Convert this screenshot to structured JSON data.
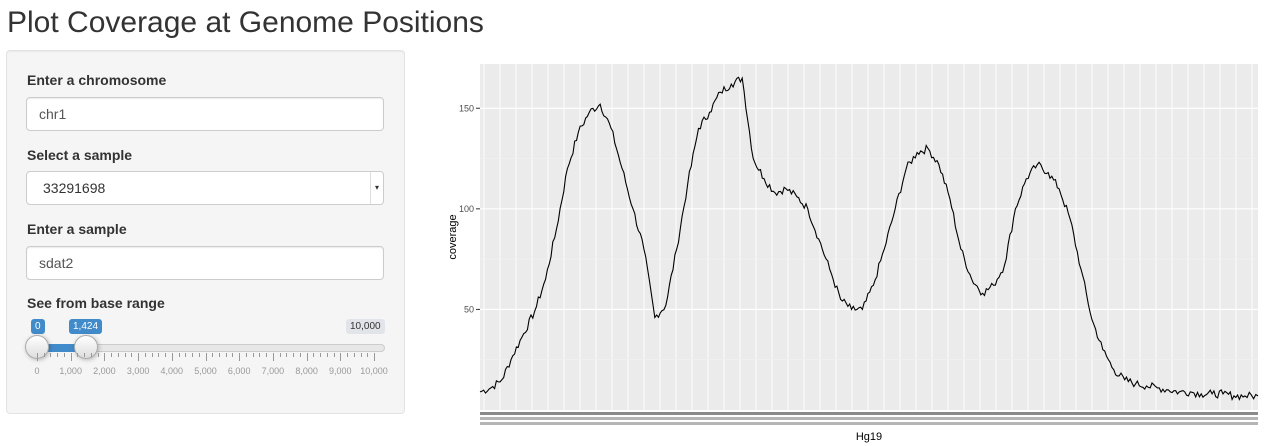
{
  "page": {
    "title": "Plot Coverage at Genome Positions"
  },
  "sidebar": {
    "chromosome": {
      "label": "Enter a chromosome",
      "value": "chr1"
    },
    "sample_select": {
      "label": "Select a sample",
      "selected": "33291698"
    },
    "sample_input": {
      "label": "Enter a sample",
      "value": "sdat2"
    },
    "range": {
      "label": "See from base range",
      "min": 0,
      "max": 10000,
      "from": 0,
      "to": 1424,
      "from_label": "0",
      "to_label": "1,424",
      "max_label": "10,000",
      "tick_labels": [
        "0",
        "1,000",
        "2,000",
        "3,000",
        "4,000",
        "5,000",
        "6,000",
        "7,000",
        "8,000",
        "9,000",
        "10,000"
      ],
      "color": "#428bca"
    }
  },
  "chart_data": {
    "type": "line",
    "xlabel": "Hg19",
    "ylabel": "coverage",
    "yticks": [
      50,
      100,
      150
    ],
    "ylim": [
      0,
      172
    ],
    "x_range": [
      0,
      1424
    ],
    "x_tick_labels_note": "dense unreadable tick labels",
    "grid": true,
    "line_color": "#000000",
    "x": [
      0,
      20,
      40,
      60,
      80,
      100,
      120,
      140,
      160,
      180,
      200,
      220,
      240,
      260,
      280,
      300,
      320,
      340,
      360,
      380,
      400,
      420,
      440,
      460,
      480,
      500,
      520,
      540,
      560,
      580,
      600,
      620,
      640,
      660,
      680,
      700,
      720,
      740,
      760,
      780,
      800,
      820,
      840,
      860,
      880,
      900,
      920,
      940,
      960,
      980,
      1000,
      1020,
      1040,
      1060,
      1080,
      1100,
      1120,
      1140,
      1160,
      1180,
      1200,
      1220,
      1240,
      1260,
      1280,
      1300,
      1320,
      1340,
      1360,
      1380,
      1400,
      1424
    ],
    "values": [
      9,
      11,
      15,
      27,
      38,
      49,
      65,
      90,
      120,
      138,
      148,
      152,
      140,
      120,
      100,
      80,
      46,
      52,
      80,
      112,
      140,
      148,
      158,
      162,
      165,
      125,
      115,
      108,
      110,
      106,
      100,
      85,
      70,
      55,
      50,
      50,
      62,
      80,
      100,
      120,
      128,
      130,
      122,
      105,
      80,
      65,
      58,
      62,
      72,
      100,
      115,
      122,
      118,
      110,
      95,
      70,
      45,
      30,
      20,
      15,
      13,
      12,
      11,
      10,
      9,
      9,
      8,
      8,
      8,
      7,
      7,
      7
    ]
  }
}
